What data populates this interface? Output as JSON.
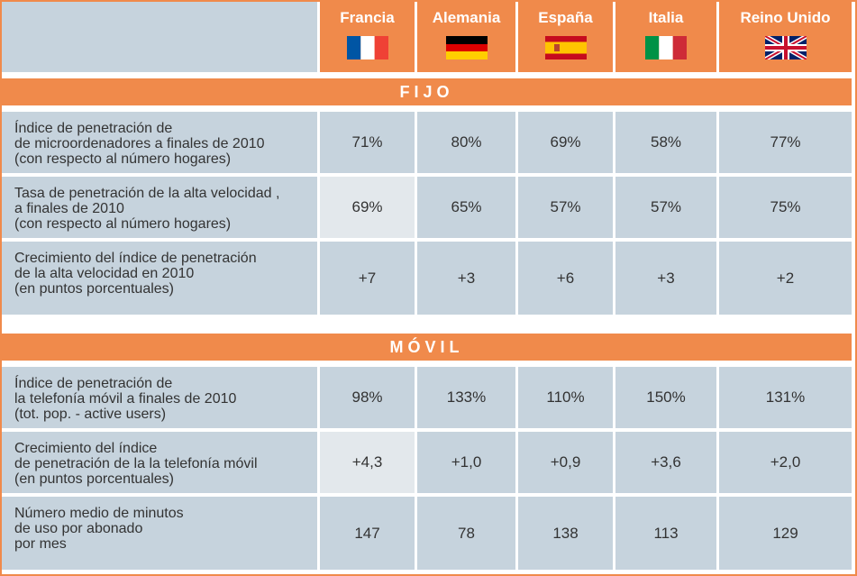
{
  "header": {
    "columns": [
      "Francia",
      "Alemania",
      "España",
      "Italia",
      "Reino Unido"
    ]
  },
  "sections": [
    {
      "title": "FIJO",
      "rows": [
        {
          "label": [
            "Índice de penetración de",
            "de microordenadores a finales de 2010",
            "(con respecto al número hogares)"
          ],
          "values": [
            "71%",
            "80%",
            "69%",
            "58%",
            "77%"
          ]
        },
        {
          "label": [
            "Tasa de penetración de la alta velocidad ,",
            "a finales de 2010",
            "(con respecto al número hogares)"
          ],
          "values": [
            "69%",
            "65%",
            "57%",
            "57%",
            "75%"
          ]
        },
        {
          "label": [
            "Crecimiento del índice de penetración",
            "de la alta velocidad en 2010",
            "(en puntos porcentuales)"
          ],
          "values": [
            "+7",
            "+3",
            "+6",
            "+3",
            "+2"
          ]
        }
      ]
    },
    {
      "title": "MÓVIL",
      "rows": [
        {
          "label": [
            "Índice de penetración de",
            "la telefonía móvil a finales de 2010",
            "(tot. pop. - active users)"
          ],
          "values": [
            "98%",
            "133%",
            "110%",
            "150%",
            "131%"
          ]
        },
        {
          "label": [
            "Crecimiento del índice",
            "de penetración de la la telefonía móvil",
            "(en puntos porcentuales)"
          ],
          "values": [
            "+4,3",
            "+1,0",
            "+0,9",
            "+3,6",
            "+2,0"
          ]
        },
        {
          "label": [
            "Número medio de minutos",
            "de uso por abonado",
            "por mes"
          ],
          "values": [
            "147",
            "78",
            "138",
            "113",
            "129"
          ]
        }
      ]
    }
  ]
}
